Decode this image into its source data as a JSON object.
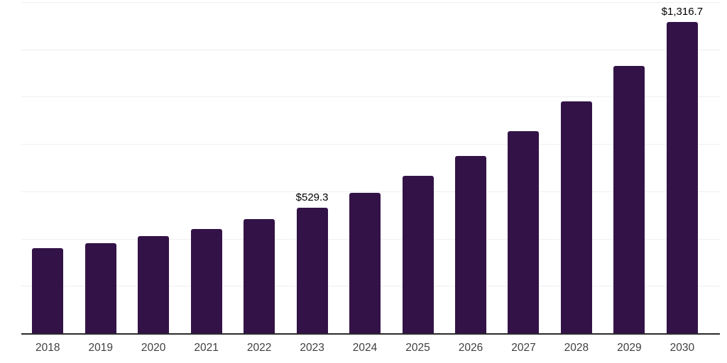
{
  "chart_data": {
    "type": "bar",
    "title": "",
    "xlabel": "",
    "ylabel": "",
    "categories": [
      "2018",
      "2019",
      "2020",
      "2021",
      "2022",
      "2023",
      "2024",
      "2025",
      "2026",
      "2027",
      "2028",
      "2029",
      "2030"
    ],
    "values": [
      359.6,
      380.1,
      410.9,
      440.1,
      481.7,
      529.3,
      593.5,
      665.4,
      751.0,
      854.2,
      979.0,
      1131.5,
      1316.7
    ],
    "data_labels": [
      "",
      "",
      "",
      "",
      "",
      "$529.3",
      "",
      "",
      "",
      "",
      "",
      "",
      "$1,316.7"
    ],
    "ylim": [
      0,
      1400
    ],
    "grid": {
      "horizontal": true,
      "step": 200
    },
    "legend": "none",
    "colors": {
      "bar": "#331347",
      "gridline": "#efefef",
      "axis": "#2b2b2b",
      "data_label": "#000000",
      "tick_label": "#404040"
    }
  }
}
